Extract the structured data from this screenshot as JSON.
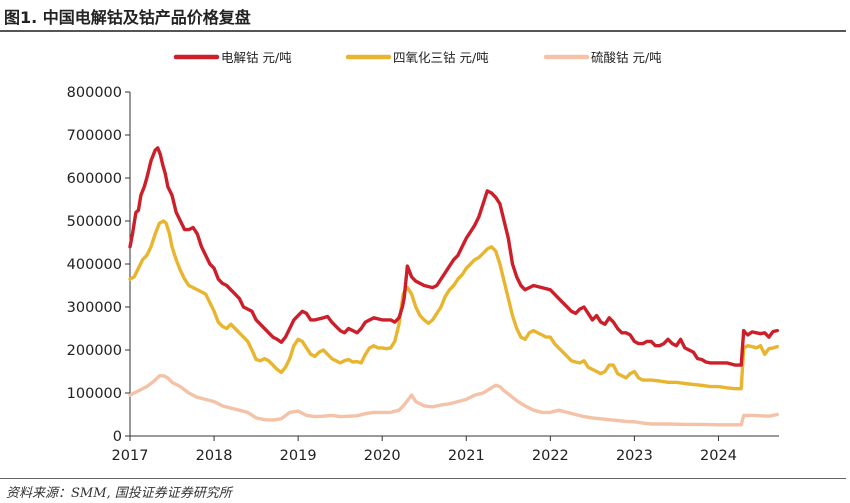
{
  "header": {
    "title": "图1. 中国电解钴及钴产品价格复盘"
  },
  "footer": {
    "source": "资料来源：SMM, 国投证券证券研究所"
  },
  "colors": {
    "electrolytic_cobalt": "#cc1f2a",
    "cobalt_tetroxide": "#e9b52e",
    "cobalt_sulfate": "#f4c2a6"
  },
  "chart_data": {
    "type": "line",
    "title": "",
    "xlabel": "",
    "ylabel": "",
    "xlim": [
      2017.0,
      2024.72
    ],
    "ylim": [
      0,
      800000
    ],
    "grid": false,
    "legend_position": "top",
    "x_ticks": [
      "2017",
      "2018",
      "2019",
      "2020",
      "2021",
      "2022",
      "2023",
      "2024"
    ],
    "y_ticks": [
      "0",
      "100000",
      "200000",
      "300000",
      "400000",
      "500000",
      "600000",
      "700000",
      "800000"
    ],
    "series": [
      {
        "name": "电解钴 元/吨",
        "color": "#cc1f2a",
        "x": [
          2017.0,
          2017.03,
          2017.07,
          2017.1,
          2017.13,
          2017.17,
          2017.2,
          2017.25,
          2017.3,
          2017.33,
          2017.36,
          2017.39,
          2017.42,
          2017.45,
          2017.5,
          2017.55,
          2017.6,
          2017.65,
          2017.7,
          2017.75,
          2017.8,
          2017.85,
          2017.9,
          2017.95,
          2018.0,
          2018.05,
          2018.1,
          2018.15,
          2018.2,
          2018.25,
          2018.3,
          2018.35,
          2018.4,
          2018.45,
          2018.5,
          2018.55,
          2018.6,
          2018.65,
          2018.7,
          2018.75,
          2018.8,
          2018.85,
          2018.9,
          2018.95,
          2019.0,
          2019.05,
          2019.1,
          2019.15,
          2019.2,
          2019.3,
          2019.35,
          2019.4,
          2019.45,
          2019.5,
          2019.55,
          2019.6,
          2019.65,
          2019.7,
          2019.75,
          2019.8,
          2019.9,
          2020.0,
          2020.1,
          2020.15,
          2020.2,
          2020.24,
          2020.26,
          2020.3,
          2020.35,
          2020.4,
          2020.5,
          2020.6,
          2020.65,
          2020.7,
          2020.75,
          2020.8,
          2020.85,
          2020.9,
          2020.95,
          2021.0,
          2021.05,
          2021.1,
          2021.15,
          2021.2,
          2021.25,
          2021.3,
          2021.35,
          2021.4,
          2021.45,
          2021.5,
          2021.55,
          2021.6,
          2021.65,
          2021.7,
          2021.75,
          2021.8,
          2021.9,
          2022.0,
          2022.05,
          2022.1,
          2022.15,
          2022.2,
          2022.25,
          2022.3,
          2022.35,
          2022.4,
          2022.45,
          2022.5,
          2022.55,
          2022.6,
          2022.65,
          2022.7,
          2022.75,
          2022.8,
          2022.85,
          2022.9,
          2022.95,
          2023.0,
          2023.05,
          2023.1,
          2023.15,
          2023.2,
          2023.25,
          2023.3,
          2023.35,
          2023.4,
          2023.45,
          2023.5,
          2023.55,
          2023.6,
          2023.7,
          2023.75,
          2023.8,
          2023.85,
          2023.9,
          2024.0,
          2024.1,
          2024.2,
          2024.27,
          2024.3,
          2024.32,
          2024.35,
          2024.4,
          2024.45,
          2024.5,
          2024.55,
          2024.6,
          2024.65,
          2024.7
        ],
        "values": [
          440000,
          470000,
          520000,
          525000,
          560000,
          580000,
          600000,
          640000,
          665000,
          670000,
          655000,
          630000,
          610000,
          580000,
          560000,
          520000,
          500000,
          480000,
          480000,
          485000,
          470000,
          440000,
          420000,
          400000,
          390000,
          365000,
          355000,
          350000,
          340000,
          330000,
          320000,
          300000,
          295000,
          290000,
          270000,
          260000,
          250000,
          240000,
          230000,
          225000,
          218000,
          230000,
          250000,
          270000,
          280000,
          290000,
          285000,
          270000,
          270000,
          275000,
          278000,
          265000,
          255000,
          245000,
          240000,
          250000,
          245000,
          240000,
          250000,
          265000,
          275000,
          270000,
          270000,
          265000,
          275000,
          300000,
          320000,
          395000,
          370000,
          360000,
          350000,
          345000,
          350000,
          365000,
          380000,
          395000,
          410000,
          420000,
          440000,
          460000,
          475000,
          490000,
          510000,
          540000,
          570000,
          565000,
          555000,
          540000,
          500000,
          460000,
          400000,
          370000,
          350000,
          340000,
          345000,
          350000,
          345000,
          340000,
          330000,
          320000,
          310000,
          300000,
          290000,
          285000,
          295000,
          300000,
          285000,
          270000,
          280000,
          265000,
          260000,
          275000,
          265000,
          250000,
          240000,
          240000,
          235000,
          220000,
          215000,
          215000,
          220000,
          220000,
          210000,
          210000,
          215000,
          225000,
          215000,
          210000,
          225000,
          205000,
          195000,
          180000,
          178000,
          172000,
          170000,
          170000,
          170000,
          165000,
          165000,
          245000,
          240000,
          235000,
          242000,
          240000,
          238000,
          240000,
          230000,
          243000,
          245000
        ]
      },
      {
        "name": "四氧化三钴 元/吨",
        "color": "#e9b52e",
        "x": [
          2017.0,
          2017.05,
          2017.1,
          2017.15,
          2017.2,
          2017.25,
          2017.3,
          2017.35,
          2017.4,
          2017.43,
          2017.47,
          2017.5,
          2017.55,
          2017.6,
          2017.65,
          2017.7,
          2017.75,
          2017.8,
          2017.85,
          2017.9,
          2017.95,
          2018.0,
          2018.05,
          2018.1,
          2018.15,
          2018.2,
          2018.25,
          2018.3,
          2018.35,
          2018.4,
          2018.45,
          2018.5,
          2018.55,
          2018.6,
          2018.65,
          2018.7,
          2018.75,
          2018.8,
          2018.85,
          2018.9,
          2018.95,
          2019.0,
          2019.05,
          2019.1,
          2019.15,
          2019.2,
          2019.25,
          2019.3,
          2019.35,
          2019.4,
          2019.45,
          2019.5,
          2019.55,
          2019.6,
          2019.65,
          2019.7,
          2019.75,
          2019.8,
          2019.85,
          2019.9,
          2019.95,
          2020.0,
          2020.05,
          2020.1,
          2020.15,
          2020.2,
          2020.25,
          2020.3,
          2020.35,
          2020.4,
          2020.45,
          2020.5,
          2020.55,
          2020.6,
          2020.65,
          2020.7,
          2020.75,
          2020.8,
          2020.85,
          2020.9,
          2020.95,
          2021.0,
          2021.05,
          2021.1,
          2021.15,
          2021.2,
          2021.25,
          2021.3,
          2021.35,
          2021.4,
          2021.45,
          2021.5,
          2021.55,
          2021.6,
          2021.65,
          2021.7,
          2021.75,
          2021.8,
          2021.85,
          2021.9,
          2021.95,
          2022.0,
          2022.05,
          2022.1,
          2022.15,
          2022.2,
          2022.25,
          2022.3,
          2022.35,
          2022.4,
          2022.45,
          2022.5,
          2022.55,
          2022.6,
          2022.65,
          2022.7,
          2022.75,
          2022.8,
          2022.85,
          2022.9,
          2022.95,
          2023.0,
          2023.05,
          2023.1,
          2023.2,
          2023.3,
          2023.4,
          2023.5,
          2023.6,
          2023.7,
          2023.8,
          2023.9,
          2024.0,
          2024.1,
          2024.2,
          2024.27,
          2024.3,
          2024.35,
          2024.4,
          2024.45,
          2024.5,
          2024.55,
          2024.6,
          2024.65,
          2024.7
        ],
        "values": [
          365000,
          370000,
          390000,
          410000,
          420000,
          440000,
          470000,
          495000,
          500000,
          495000,
          470000,
          440000,
          410000,
          385000,
          365000,
          350000,
          345000,
          340000,
          335000,
          330000,
          310000,
          290000,
          265000,
          255000,
          250000,
          260000,
          250000,
          240000,
          230000,
          220000,
          200000,
          178000,
          175000,
          180000,
          175000,
          165000,
          155000,
          148000,
          160000,
          180000,
          210000,
          225000,
          220000,
          205000,
          190000,
          185000,
          195000,
          200000,
          190000,
          180000,
          175000,
          170000,
          175000,
          178000,
          172000,
          173000,
          170000,
          190000,
          205000,
          210000,
          205000,
          205000,
          203000,
          205000,
          220000,
          260000,
          330000,
          345000,
          330000,
          300000,
          280000,
          270000,
          262000,
          270000,
          285000,
          300000,
          325000,
          340000,
          350000,
          365000,
          375000,
          390000,
          400000,
          410000,
          415000,
          425000,
          435000,
          440000,
          430000,
          400000,
          360000,
          320000,
          280000,
          250000,
          230000,
          225000,
          240000,
          245000,
          240000,
          235000,
          230000,
          230000,
          215000,
          205000,
          195000,
          185000,
          175000,
          172000,
          170000,
          175000,
          160000,
          155000,
          150000,
          145000,
          150000,
          165000,
          165000,
          145000,
          140000,
          135000,
          145000,
          150000,
          135000,
          130000,
          130000,
          128000,
          125000,
          125000,
          122000,
          120000,
          118000,
          115000,
          115000,
          112000,
          110000,
          110000,
          205000,
          210000,
          208000,
          205000,
          210000,
          190000,
          203000,
          205000,
          208000
        ]
      },
      {
        "name": "硫酸钴 元/吨",
        "color": "#f4c2a6",
        "x": [
          2017.0,
          2017.1,
          2017.2,
          2017.3,
          2017.35,
          2017.4,
          2017.45,
          2017.5,
          2017.6,
          2017.7,
          2017.8,
          2017.9,
          2018.0,
          2018.1,
          2018.2,
          2018.3,
          2018.4,
          2018.5,
          2018.6,
          2018.7,
          2018.8,
          2018.9,
          2019.0,
          2019.1,
          2019.2,
          2019.3,
          2019.4,
          2019.5,
          2019.6,
          2019.7,
          2019.8,
          2019.9,
          2020.0,
          2020.1,
          2020.2,
          2020.25,
          2020.3,
          2020.35,
          2020.4,
          2020.5,
          2020.6,
          2020.7,
          2020.8,
          2020.9,
          2021.0,
          2021.1,
          2021.2,
          2021.3,
          2021.35,
          2021.4,
          2021.45,
          2021.5,
          2021.6,
          2021.7,
          2021.8,
          2021.9,
          2022.0,
          2022.1,
          2022.2,
          2022.3,
          2022.4,
          2022.5,
          2022.6,
          2022.7,
          2022.8,
          2022.9,
          2023.0,
          2023.1,
          2023.2,
          2023.4,
          2023.6,
          2023.8,
          2024.0,
          2024.2,
          2024.27,
          2024.3,
          2024.4,
          2024.5,
          2024.6,
          2024.7
        ],
        "values": [
          95000,
          105000,
          115000,
          130000,
          140000,
          140000,
          135000,
          125000,
          115000,
          100000,
          90000,
          85000,
          80000,
          70000,
          65000,
          60000,
          55000,
          42000,
          38000,
          37000,
          40000,
          55000,
          58000,
          48000,
          45000,
          46000,
          48000,
          45000,
          46000,
          47000,
          52000,
          55000,
          55000,
          55000,
          60000,
          70000,
          82000,
          95000,
          80000,
          70000,
          68000,
          72000,
          75000,
          80000,
          85000,
          95000,
          100000,
          112000,
          118000,
          115000,
          105000,
          98000,
          82000,
          70000,
          60000,
          55000,
          55000,
          60000,
          55000,
          50000,
          45000,
          42000,
          40000,
          38000,
          36000,
          34000,
          33000,
          30000,
          28000,
          28000,
          27000,
          27000,
          26000,
          26000,
          26000,
          48000,
          48000,
          47000,
          46000,
          50000
        ]
      }
    ]
  }
}
